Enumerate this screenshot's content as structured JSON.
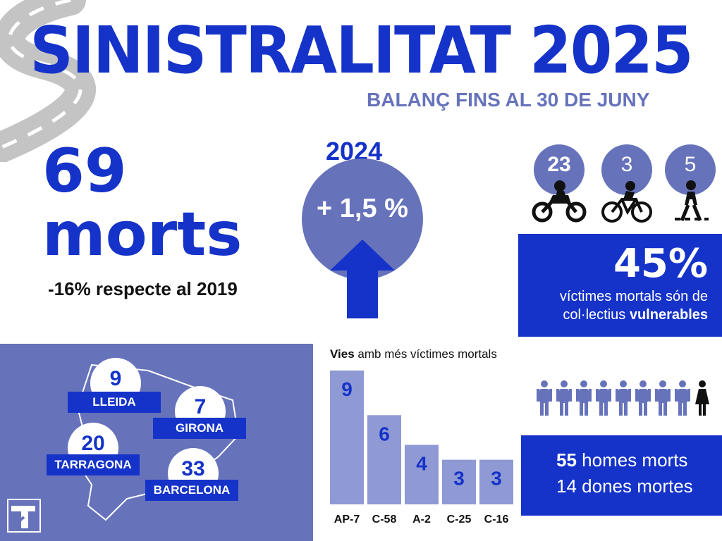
{
  "title": "SINISTRALITAT 2025",
  "subtitle": "BALANÇ FINS AL 30 DE JUNY",
  "deaths": {
    "number": "69",
    "label": "morts",
    "compare": "-16% respecte al 2019"
  },
  "change": {
    "year": "2024",
    "value": "+ 1,5 %"
  },
  "vulnerable": {
    "groups": [
      {
        "count": "23",
        "icon": "motorcycle-icon"
      },
      {
        "count": "3",
        "icon": "bicycle-icon"
      },
      {
        "count": "5",
        "icon": "pedestrian-icon"
      }
    ],
    "percent": "45%",
    "line1": "víctimes mortals són de",
    "line2_prefix": "col·lectius",
    "line2_bold": "vulnerables"
  },
  "provinces": [
    {
      "name": "LLEIDA",
      "count": "9"
    },
    {
      "name": "GIRONA",
      "count": "7"
    },
    {
      "name": "TARRAGONA",
      "count": "20"
    },
    {
      "name": "BARCELONA",
      "count": "33"
    }
  ],
  "roads_title": {
    "bold": "Vies",
    "rest": "amb més víctimes mortals"
  },
  "chart_data": {
    "type": "bar",
    "title": "Vies amb més víctimes mortals",
    "categories": [
      "AP-7",
      "C-58",
      "A-2",
      "C-25",
      "C-16"
    ],
    "values": [
      9,
      6,
      4,
      3,
      3
    ],
    "ylim": [
      0,
      9
    ],
    "bar_color": "#8f99d3",
    "label_color": "#1533c9"
  },
  "gender": {
    "men_count": "55",
    "men_label": "homes morts",
    "women_count": "14",
    "women_label": "dones mortes"
  },
  "colors": {
    "primary": "#1533c9",
    "secondary": "#6673bb",
    "bar": "#8f99d3"
  }
}
